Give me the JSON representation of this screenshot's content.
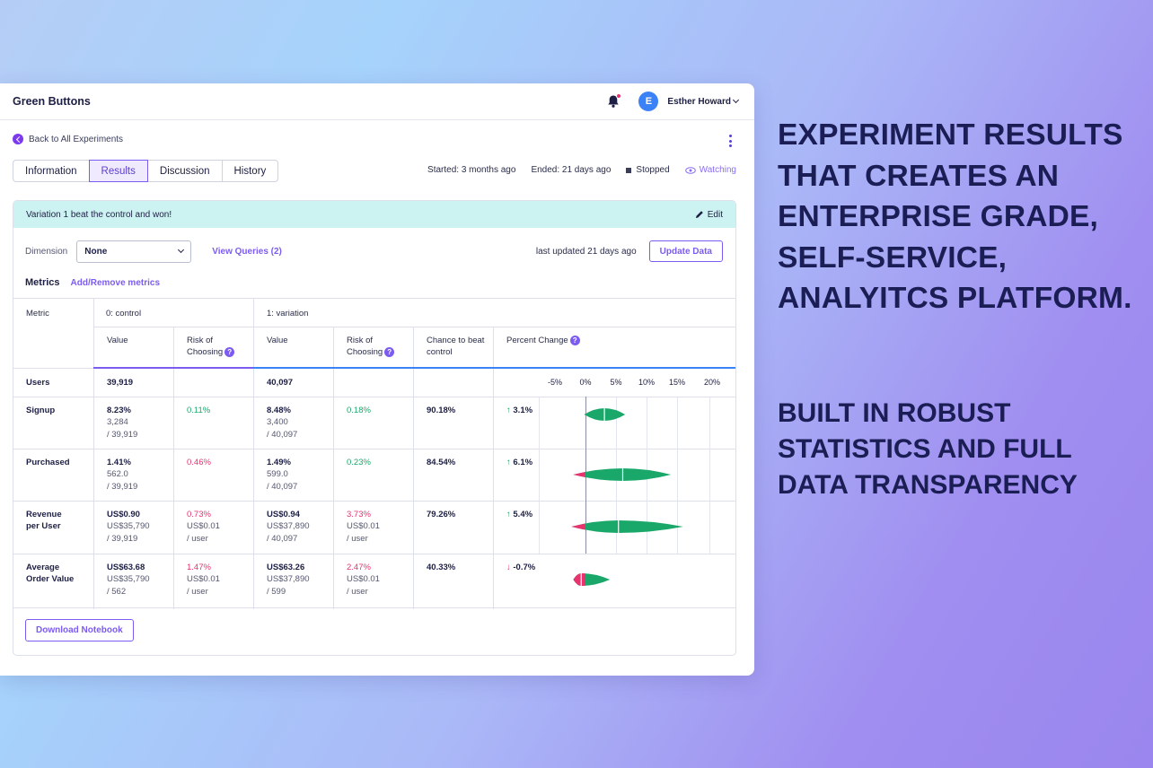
{
  "app": {
    "title": "Green Buttons",
    "user_initial": "E",
    "user_name": "Esther Howard",
    "back_label": "Back to All Experiments"
  },
  "tabs": [
    {
      "label": "Information",
      "active": false
    },
    {
      "label": "Results",
      "active": true
    },
    {
      "label": "Discussion",
      "active": false
    },
    {
      "label": "History",
      "active": false
    }
  ],
  "meta": {
    "started": "Started: 3 months ago",
    "ended": "Ended: 21 days ago",
    "status": "Stopped",
    "watching": "Watching"
  },
  "banner": {
    "text": "Variation 1 beat the control and won!",
    "edit_label": "Edit"
  },
  "controls": {
    "dimension_label": "Dimension",
    "dimension_value": "None",
    "view_queries": "View Queries (2)",
    "last_updated": "last updated 21 days ago",
    "update_button": "Update Data",
    "metrics_title": "Metrics",
    "add_remove_metrics": "Add/Remove metrics",
    "download_button": "Download Notebook"
  },
  "table": {
    "headers": {
      "metric": "Metric",
      "control_group": "0: control",
      "variation_group": "1: variation",
      "value": "Value",
      "risk": "Risk of Choosing",
      "chance": "Chance to beat control",
      "percent_change": "Percent Change"
    },
    "axis_ticks": [
      "-5%",
      "0%",
      "5%",
      "10%",
      "15%",
      "20%"
    ],
    "users": {
      "label": "Users",
      "control": "39,919",
      "variation": "40,097"
    },
    "rows": [
      {
        "metric": "Signup",
        "c_value": "8.23%",
        "c_sub1": "3,284",
        "c_sub2": "/ 39,919",
        "c_risk": "0.11%",
        "c_risk_sub1": "",
        "c_risk_sub2": "",
        "v_value": "8.48%",
        "v_sub1": "3,400",
        "v_sub2": "/ 40,097",
        "v_risk": "0.18%",
        "v_risk_sub1": "",
        "v_risk_sub2": "",
        "chance": "90.18%",
        "change": "3.1%",
        "direction": "up"
      },
      {
        "metric": "Purchased",
        "c_value": "1.41%",
        "c_sub1": "562.0",
        "c_sub2": "/ 39,919",
        "c_risk": "0.46%",
        "c_risk_sub1": "",
        "c_risk_sub2": "",
        "v_value": "1.49%",
        "v_sub1": "599.0",
        "v_sub2": "/ 40,097",
        "v_risk": "0.23%",
        "v_risk_sub1": "",
        "v_risk_sub2": "",
        "chance": "84.54%",
        "change": "6.1%",
        "direction": "up"
      },
      {
        "metric": "Revenue per User",
        "c_value": "US$0.90",
        "c_sub1": "US$35,790",
        "c_sub2": "/ 39,919",
        "c_risk": "0.73%",
        "c_risk_sub1": "US$0.01",
        "c_risk_sub2": "/ user",
        "v_value": "US$0.94",
        "v_sub1": "US$37,890",
        "v_sub2": "/ 40,097",
        "v_risk": "3.73%",
        "v_risk_sub1": "US$0.01",
        "v_risk_sub2": "/ user",
        "chance": "79.26%",
        "change": "5.4%",
        "direction": "up"
      },
      {
        "metric": "Average Order Value",
        "c_value": "US$63.68",
        "c_sub1": "US$35,790",
        "c_sub2": "/ 562",
        "c_risk": "1.47%",
        "c_risk_sub1": "US$0.01",
        "c_risk_sub2": "/ user",
        "v_value": "US$63.26",
        "v_sub1": "US$37,890",
        "v_sub2": "/ 599",
        "v_risk": "2.47%",
        "v_risk_sub1": "US$0.01",
        "v_risk_sub2": "/ user",
        "chance": "40.33%",
        "change": "-0.7%",
        "direction": "down"
      }
    ],
    "risk_colors": [
      [
        "pos",
        "pos"
      ],
      [
        "neg",
        "pos"
      ],
      [
        "neg",
        "neg"
      ],
      [
        "neg",
        "neg"
      ]
    ],
    "violins": [
      {
        "lo": -0.2,
        "mid": 3.1,
        "hi": 6.5
      },
      {
        "lo": -2.0,
        "mid": 6.1,
        "hi": 14.0
      },
      {
        "lo": -2.3,
        "mid": 5.4,
        "hi": 16.0
      },
      {
        "lo": -2.0,
        "mid": -0.7,
        "hi": 4.0
      }
    ]
  },
  "colors": {
    "accent": "#7c5cf0",
    "positive": "#1aa86a",
    "negative": "#e8336e",
    "banner_bg": "#cdf2f2"
  },
  "marketing": {
    "headline": "EXPERIMENT RESULTS THAT CREATES AN ENTERPRISE GRADE, SELF-SERVICE, ANALYITCS PLATFORM.",
    "subline": "BUILT IN ROBUST STATISTICS AND FULL DATA TRANSPARENCY"
  }
}
